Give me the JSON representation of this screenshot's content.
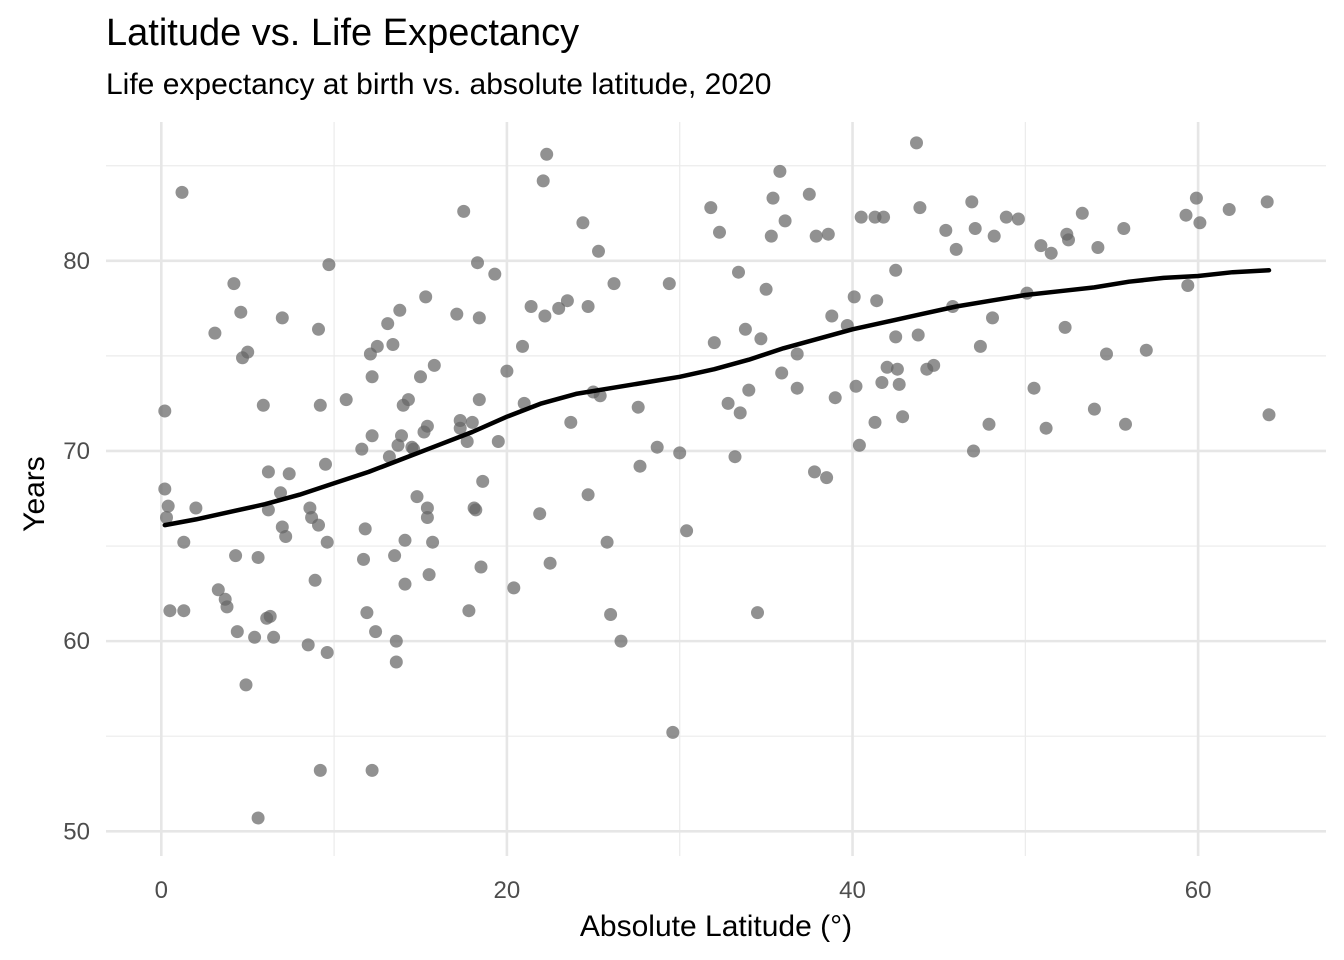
{
  "title": "Latitude vs. Life Expectancy",
  "subtitle": "Life expectancy at birth vs. absolute latitude, 2020",
  "chart_data": {
    "type": "scatter",
    "title": "Latitude vs. Life Expectancy",
    "subtitle": "Life expectancy at birth vs. absolute latitude, 2020",
    "xlabel": "Absolute Latitude (°)",
    "ylabel": "Years",
    "xlim": [
      -3.2,
      67.4
    ],
    "ylim": [
      48.7,
      87.3
    ],
    "xticks": [
      0,
      20,
      40,
      60
    ],
    "yticks": [
      50,
      60,
      70,
      80
    ],
    "grid": true,
    "point_color": "#666666",
    "line_color": "#000000",
    "points": [
      [
        0.2,
        72.1
      ],
      [
        0.2,
        68.0
      ],
      [
        0.3,
        66.5
      ],
      [
        0.4,
        67.1
      ],
      [
        0.5,
        61.6
      ],
      [
        1.2,
        83.6
      ],
      [
        1.3,
        65.2
      ],
      [
        1.3,
        61.6
      ],
      [
        2.0,
        67.0
      ],
      [
        3.1,
        76.2
      ],
      [
        3.3,
        62.7
      ],
      [
        3.7,
        62.2
      ],
      [
        3.8,
        61.8
      ],
      [
        4.2,
        78.8
      ],
      [
        4.3,
        64.5
      ],
      [
        4.4,
        60.5
      ],
      [
        4.6,
        77.3
      ],
      [
        4.7,
        74.9
      ],
      [
        4.9,
        57.7
      ],
      [
        5.0,
        75.2
      ],
      [
        5.4,
        60.2
      ],
      [
        5.6,
        64.4
      ],
      [
        5.6,
        50.7
      ],
      [
        5.9,
        72.4
      ],
      [
        6.1,
        61.2
      ],
      [
        6.2,
        66.9
      ],
      [
        6.2,
        68.9
      ],
      [
        6.3,
        61.3
      ],
      [
        6.5,
        60.2
      ],
      [
        6.9,
        67.8
      ],
      [
        7.0,
        77.0
      ],
      [
        7.0,
        66.0
      ],
      [
        7.2,
        65.5
      ],
      [
        7.4,
        68.8
      ],
      [
        8.5,
        59.8
      ],
      [
        8.6,
        67.0
      ],
      [
        8.7,
        66.5
      ],
      [
        8.9,
        63.2
      ],
      [
        9.1,
        76.4
      ],
      [
        9.1,
        66.1
      ],
      [
        9.2,
        72.4
      ],
      [
        9.2,
        53.2
      ],
      [
        9.5,
        69.3
      ],
      [
        9.6,
        65.2
      ],
      [
        9.6,
        59.4
      ],
      [
        9.7,
        79.8
      ],
      [
        10.7,
        72.7
      ],
      [
        11.6,
        70.1
      ],
      [
        11.7,
        64.3
      ],
      [
        11.8,
        65.9
      ],
      [
        11.9,
        61.5
      ],
      [
        12.1,
        75.1
      ],
      [
        12.2,
        73.9
      ],
      [
        12.2,
        70.8
      ],
      [
        12.2,
        53.2
      ],
      [
        12.4,
        60.5
      ],
      [
        12.5,
        75.5
      ],
      [
        13.1,
        76.7
      ],
      [
        13.2,
        69.7
      ],
      [
        13.4,
        75.6
      ],
      [
        13.5,
        64.5
      ],
      [
        13.6,
        60.0
      ],
      [
        13.6,
        58.9
      ],
      [
        13.7,
        70.3
      ],
      [
        13.8,
        77.4
      ],
      [
        13.9,
        70.8
      ],
      [
        14.0,
        72.4
      ],
      [
        14.1,
        65.3
      ],
      [
        14.1,
        63.0
      ],
      [
        14.3,
        72.7
      ],
      [
        14.5,
        70.2
      ],
      [
        14.6,
        70.1
      ],
      [
        14.8,
        67.6
      ],
      [
        15.0,
        73.9
      ],
      [
        15.2,
        71.0
      ],
      [
        15.3,
        78.1
      ],
      [
        15.4,
        71.3
      ],
      [
        15.4,
        67.0
      ],
      [
        15.4,
        66.5
      ],
      [
        15.5,
        63.5
      ],
      [
        15.7,
        65.2
      ],
      [
        15.8,
        74.5
      ],
      [
        17.1,
        77.2
      ],
      [
        17.3,
        71.6
      ],
      [
        17.3,
        71.2
      ],
      [
        17.5,
        82.6
      ],
      [
        17.7,
        70.5
      ],
      [
        17.8,
        61.6
      ],
      [
        18.0,
        71.5
      ],
      [
        18.1,
        67.0
      ],
      [
        18.2,
        66.9
      ],
      [
        18.3,
        79.9
      ],
      [
        18.4,
        77.0
      ],
      [
        18.4,
        72.7
      ],
      [
        18.5,
        63.9
      ],
      [
        18.6,
        68.4
      ],
      [
        19.3,
        79.3
      ],
      [
        19.5,
        70.5
      ],
      [
        20.0,
        74.2
      ],
      [
        20.4,
        62.8
      ],
      [
        20.9,
        75.5
      ],
      [
        21.0,
        72.5
      ],
      [
        21.4,
        77.6
      ],
      [
        21.9,
        66.7
      ],
      [
        22.1,
        84.2
      ],
      [
        22.2,
        77.1
      ],
      [
        22.3,
        85.6
      ],
      [
        22.5,
        64.1
      ],
      [
        23.0,
        77.5
      ],
      [
        23.5,
        77.9
      ],
      [
        23.7,
        71.5
      ],
      [
        24.4,
        82.0
      ],
      [
        24.7,
        77.6
      ],
      [
        24.7,
        67.7
      ],
      [
        25.0,
        73.1
      ],
      [
        25.3,
        80.5
      ],
      [
        25.4,
        72.9
      ],
      [
        25.8,
        65.2
      ],
      [
        26.0,
        61.4
      ],
      [
        26.2,
        78.8
      ],
      [
        26.6,
        60.0
      ],
      [
        27.6,
        72.3
      ],
      [
        27.7,
        69.2
      ],
      [
        28.7,
        70.2
      ],
      [
        29.4,
        78.8
      ],
      [
        29.6,
        55.2
      ],
      [
        30.0,
        69.9
      ],
      [
        30.4,
        65.8
      ],
      [
        31.8,
        82.8
      ],
      [
        32.0,
        75.7
      ],
      [
        32.3,
        81.5
      ],
      [
        32.8,
        72.5
      ],
      [
        33.2,
        69.7
      ],
      [
        33.4,
        79.4
      ],
      [
        33.5,
        72.0
      ],
      [
        33.8,
        76.4
      ],
      [
        34.0,
        73.2
      ],
      [
        34.5,
        61.5
      ],
      [
        34.7,
        75.9
      ],
      [
        35.0,
        78.5
      ],
      [
        35.3,
        81.3
      ],
      [
        35.4,
        83.3
      ],
      [
        35.8,
        84.7
      ],
      [
        35.9,
        74.1
      ],
      [
        36.1,
        82.1
      ],
      [
        36.8,
        75.1
      ],
      [
        36.8,
        73.3
      ],
      [
        37.5,
        83.5
      ],
      [
        37.8,
        68.9
      ],
      [
        37.9,
        81.3
      ],
      [
        38.5,
        68.6
      ],
      [
        38.6,
        81.4
      ],
      [
        38.8,
        77.1
      ],
      [
        39.0,
        72.8
      ],
      [
        39.7,
        76.6
      ],
      [
        40.1,
        78.1
      ],
      [
        40.2,
        73.4
      ],
      [
        40.4,
        70.3
      ],
      [
        40.5,
        82.3
      ],
      [
        41.3,
        82.3
      ],
      [
        41.3,
        71.5
      ],
      [
        41.4,
        77.9
      ],
      [
        41.7,
        73.6
      ],
      [
        41.8,
        82.3
      ],
      [
        42.0,
        74.4
      ],
      [
        42.5,
        79.5
      ],
      [
        42.5,
        76.0
      ],
      [
        42.6,
        74.3
      ],
      [
        42.7,
        73.5
      ],
      [
        42.9,
        71.8
      ],
      [
        43.7,
        86.2
      ],
      [
        43.8,
        76.1
      ],
      [
        43.9,
        82.8
      ],
      [
        44.3,
        74.3
      ],
      [
        44.7,
        74.5
      ],
      [
        45.4,
        81.6
      ],
      [
        45.8,
        77.6
      ],
      [
        46.0,
        80.6
      ],
      [
        46.9,
        83.1
      ],
      [
        47.0,
        70.0
      ],
      [
        47.1,
        81.7
      ],
      [
        47.4,
        75.5
      ],
      [
        47.9,
        71.4
      ],
      [
        48.1,
        77.0
      ],
      [
        48.2,
        81.3
      ],
      [
        48.9,
        82.3
      ],
      [
        49.6,
        82.2
      ],
      [
        50.1,
        78.3
      ],
      [
        50.5,
        73.3
      ],
      [
        50.9,
        80.8
      ],
      [
        51.2,
        71.2
      ],
      [
        51.5,
        80.4
      ],
      [
        52.3,
        76.5
      ],
      [
        52.4,
        81.4
      ],
      [
        52.5,
        81.1
      ],
      [
        53.3,
        82.5
      ],
      [
        54.0,
        72.2
      ],
      [
        54.2,
        80.7
      ],
      [
        54.7,
        75.1
      ],
      [
        55.7,
        81.7
      ],
      [
        55.8,
        71.4
      ],
      [
        57.0,
        75.3
      ],
      [
        59.3,
        82.4
      ],
      [
        59.4,
        78.7
      ],
      [
        59.9,
        83.3
      ],
      [
        60.1,
        82.0
      ],
      [
        61.8,
        82.7
      ],
      [
        64.0,
        83.1
      ],
      [
        64.1,
        71.9
      ]
    ],
    "trend": [
      [
        0.2,
        66.1
      ],
      [
        2.0,
        66.4
      ],
      [
        4.0,
        66.8
      ],
      [
        6.0,
        67.2
      ],
      [
        8.0,
        67.7
      ],
      [
        10.0,
        68.3
      ],
      [
        12.0,
        68.9
      ],
      [
        14.0,
        69.6
      ],
      [
        16.0,
        70.3
      ],
      [
        18.0,
        71.0
      ],
      [
        20.0,
        71.8
      ],
      [
        22.0,
        72.5
      ],
      [
        24.0,
        73.0
      ],
      [
        26.0,
        73.3
      ],
      [
        28.0,
        73.6
      ],
      [
        30.0,
        73.9
      ],
      [
        32.0,
        74.3
      ],
      [
        34.0,
        74.8
      ],
      [
        36.0,
        75.4
      ],
      [
        38.0,
        75.9
      ],
      [
        40.0,
        76.4
      ],
      [
        42.0,
        76.8
      ],
      [
        44.0,
        77.2
      ],
      [
        46.0,
        77.6
      ],
      [
        48.0,
        77.9
      ],
      [
        50.0,
        78.2
      ],
      [
        52.0,
        78.4
      ],
      [
        54.0,
        78.6
      ],
      [
        56.0,
        78.9
      ],
      [
        58.0,
        79.1
      ],
      [
        60.0,
        79.2
      ],
      [
        62.0,
        79.4
      ],
      [
        64.1,
        79.5
      ]
    ]
  }
}
